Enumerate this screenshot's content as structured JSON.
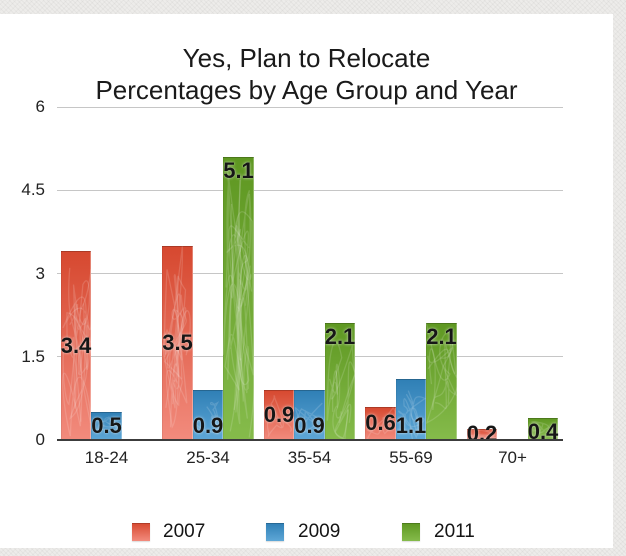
{
  "slide": {
    "title_line1": "Yes, Plan to Relocate",
    "title_line2": "Percentages by Age Group and Year"
  },
  "chart_data": {
    "type": "bar",
    "title": "Yes, Plan to Relocate — Percentages by Age Group and Year",
    "categories": [
      "18-24",
      "25-34",
      "35-54",
      "55-69",
      "70+"
    ],
    "series": [
      {
        "name": "2007",
        "color": "#e8604c",
        "gradient_top": "#d6482f",
        "gradient_bottom": "#f28b7d",
        "values": [
          3.4,
          3.5,
          0.9,
          0.6,
          0.2
        ]
      },
      {
        "name": "2009",
        "color": "#4695ca",
        "gradient_top": "#2f7fb5",
        "gradient_bottom": "#5ea7d7",
        "values": [
          0.5,
          0.9,
          0.9,
          1.1,
          null
        ]
      },
      {
        "name": "2011",
        "color": "#76ab2e",
        "gradient_top": "#5e9721",
        "gradient_bottom": "#85bb4b",
        "values": [
          null,
          5.1,
          2.1,
          2.1,
          0.4
        ]
      }
    ],
    "ylim": [
      0,
      6
    ],
    "yticks": [
      0,
      1.5,
      3,
      4.5,
      6
    ],
    "ytick_labels": [
      "0",
      "1.5",
      "3",
      "4.5",
      "6"
    ],
    "xlabel": "",
    "ylabel": "",
    "grid": true,
    "value_labels_shown": true,
    "legend_position": "bottom",
    "background_color": "#ffffff",
    "gridline_color": "#c6c6c6",
    "axis_color": "#3c3c3c"
  }
}
